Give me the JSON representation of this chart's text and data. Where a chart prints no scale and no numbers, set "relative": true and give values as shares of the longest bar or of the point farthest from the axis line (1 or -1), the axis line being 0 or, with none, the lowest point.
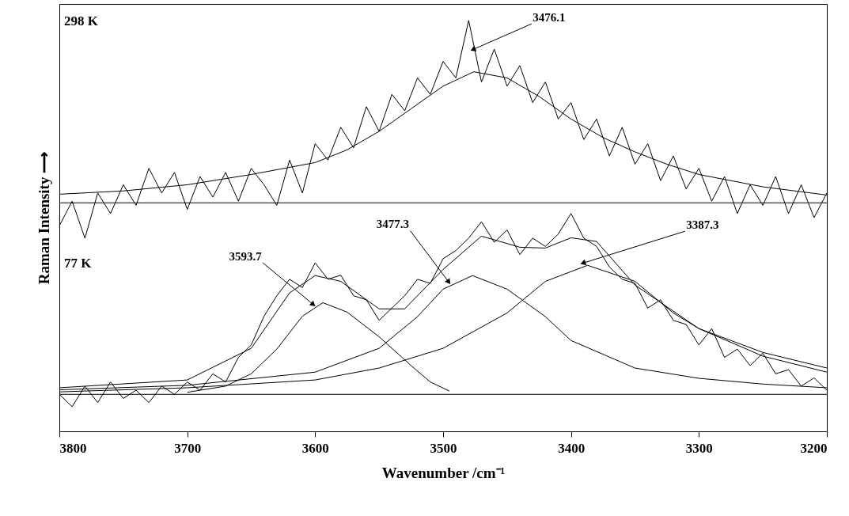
{
  "chart_data": {
    "type": "line",
    "relative": true,
    "xlabel": "Wavenumber /cm⁻¹",
    "ylabel": "Raman Intensity ⟶",
    "xlim": [
      3800,
      3200
    ],
    "xticks": [
      3800,
      3700,
      3600,
      3500,
      3400,
      3300,
      3200
    ],
    "grid": false,
    "marker": "none",
    "line_style": "solid",
    "annotations": [
      "298 K",
      "77 K",
      {
        "text": "3476.1",
        "x": 3476,
        "y": 0.93
      },
      {
        "text": "3593.7",
        "x": 3602,
        "y": 0.31
      },
      {
        "text": "3477.3",
        "x": 3496,
        "y": 0.365
      },
      {
        "text": "3387.3",
        "x": 3390,
        "y": 0.41
      }
    ],
    "ref_lines": [
      {
        "axis": "y",
        "value": 0.556,
        "color": "#000000"
      },
      {
        "axis": "y",
        "value": 0.09,
        "color": "#000000"
      }
    ],
    "series": [
      {
        "color": "#000000",
        "x": [
          3800,
          3790,
          3780,
          3770,
          3760,
          3750,
          3740,
          3730,
          3720,
          3710,
          3700,
          3690,
          3680,
          3670,
          3660,
          3650,
          3640,
          3630,
          3620,
          3610,
          3600,
          3590,
          3580,
          3570,
          3560,
          3550,
          3540,
          3530,
          3520,
          3510,
          3500,
          3490,
          3480,
          3470,
          3460,
          3450,
          3440,
          3430,
          3420,
          3410,
          3400,
          3390,
          3380,
          3370,
          3360,
          3350,
          3340,
          3330,
          3320,
          3310,
          3300,
          3290,
          3280,
          3270,
          3260,
          3250,
          3240,
          3230,
          3220,
          3210,
          3200
        ],
        "values": [
          0.5,
          0.56,
          0.47,
          0.58,
          0.53,
          0.6,
          0.55,
          0.64,
          0.58,
          0.63,
          0.54,
          0.62,
          0.57,
          0.63,
          0.56,
          0.64,
          0.6,
          0.55,
          0.66,
          0.58,
          0.7,
          0.66,
          0.74,
          0.69,
          0.79,
          0.73,
          0.82,
          0.78,
          0.86,
          0.82,
          0.9,
          0.86,
          1.0,
          0.85,
          0.93,
          0.84,
          0.89,
          0.8,
          0.85,
          0.76,
          0.8,
          0.71,
          0.76,
          0.67,
          0.74,
          0.65,
          0.7,
          0.61,
          0.67,
          0.59,
          0.64,
          0.56,
          0.62,
          0.53,
          0.6,
          0.55,
          0.62,
          0.53,
          0.6,
          0.52,
          0.58
        ]
      },
      {
        "color": "#000000",
        "x": [
          3800,
          3750,
          3700,
          3650,
          3600,
          3575,
          3550,
          3525,
          3500,
          3476,
          3450,
          3425,
          3400,
          3375,
          3350,
          3325,
          3300,
          3250,
          3200
        ],
        "values": [
          0.577,
          0.585,
          0.6,
          0.625,
          0.654,
          0.685,
          0.73,
          0.785,
          0.84,
          0.875,
          0.86,
          0.815,
          0.76,
          0.715,
          0.68,
          0.65,
          0.625,
          0.595,
          0.575
        ]
      },
      {
        "color": "#000000",
        "x": [
          3800,
          3790,
          3780,
          3770,
          3760,
          3750,
          3740,
          3730,
          3720,
          3710,
          3700,
          3690,
          3680,
          3670,
          3660,
          3650,
          3640,
          3630,
          3620,
          3610,
          3600,
          3590,
          3580,
          3570,
          3560,
          3550,
          3540,
          3530,
          3520,
          3510,
          3500,
          3490,
          3480,
          3470,
          3460,
          3450,
          3440,
          3430,
          3420,
          3410,
          3400,
          3390,
          3380,
          3370,
          3360,
          3350,
          3340,
          3330,
          3320,
          3310,
          3300,
          3290,
          3280,
          3270,
          3260,
          3250,
          3240,
          3230,
          3220,
          3210,
          3200
        ],
        "values": [
          0.09,
          0.06,
          0.11,
          0.07,
          0.12,
          0.08,
          0.1,
          0.07,
          0.11,
          0.09,
          0.12,
          0.1,
          0.14,
          0.12,
          0.18,
          0.21,
          0.28,
          0.33,
          0.37,
          0.35,
          0.41,
          0.37,
          0.38,
          0.33,
          0.32,
          0.27,
          0.3,
          0.33,
          0.37,
          0.36,
          0.42,
          0.44,
          0.47,
          0.51,
          0.46,
          0.49,
          0.43,
          0.47,
          0.45,
          0.48,
          0.53,
          0.47,
          0.45,
          0.4,
          0.37,
          0.36,
          0.3,
          0.32,
          0.27,
          0.26,
          0.21,
          0.25,
          0.18,
          0.2,
          0.16,
          0.19,
          0.14,
          0.15,
          0.11,
          0.13,
          0.1
        ]
      },
      {
        "color": "#000000",
        "x": [
          3800,
          3700,
          3650,
          3620,
          3600,
          3580,
          3550,
          3530,
          3500,
          3470,
          3440,
          3420,
          3400,
          3380,
          3350,
          3300,
          3250,
          3200
        ],
        "values": [
          0.106,
          0.125,
          0.202,
          0.337,
          0.379,
          0.365,
          0.298,
          0.298,
          0.394,
          0.475,
          0.448,
          0.446,
          0.471,
          0.462,
          0.356,
          0.25,
          0.192,
          0.154
        ]
      },
      {
        "color": "#000000",
        "x": [
          3700,
          3670,
          3650,
          3630,
          3610,
          3594,
          3575,
          3550,
          3525,
          3510,
          3495
        ],
        "values": [
          0.095,
          0.11,
          0.14,
          0.2,
          0.28,
          0.313,
          0.29,
          0.23,
          0.16,
          0.12,
          0.098
        ]
      },
      {
        "color": "#000000",
        "x": [
          3800,
          3700,
          3600,
          3550,
          3520,
          3500,
          3477,
          3450,
          3420,
          3400,
          3350,
          3300,
          3250,
          3200
        ],
        "values": [
          0.101,
          0.112,
          0.144,
          0.202,
          0.279,
          0.346,
          0.379,
          0.346,
          0.279,
          0.221,
          0.154,
          0.129,
          0.115,
          0.106
        ]
      },
      {
        "color": "#000000",
        "x": [
          3800,
          3700,
          3600,
          3550,
          3500,
          3450,
          3420,
          3387,
          3350,
          3320,
          3300,
          3250,
          3200
        ],
        "values": [
          0.096,
          0.106,
          0.125,
          0.154,
          0.202,
          0.288,
          0.365,
          0.404,
          0.365,
          0.288,
          0.25,
          0.183,
          0.144
        ]
      }
    ]
  }
}
